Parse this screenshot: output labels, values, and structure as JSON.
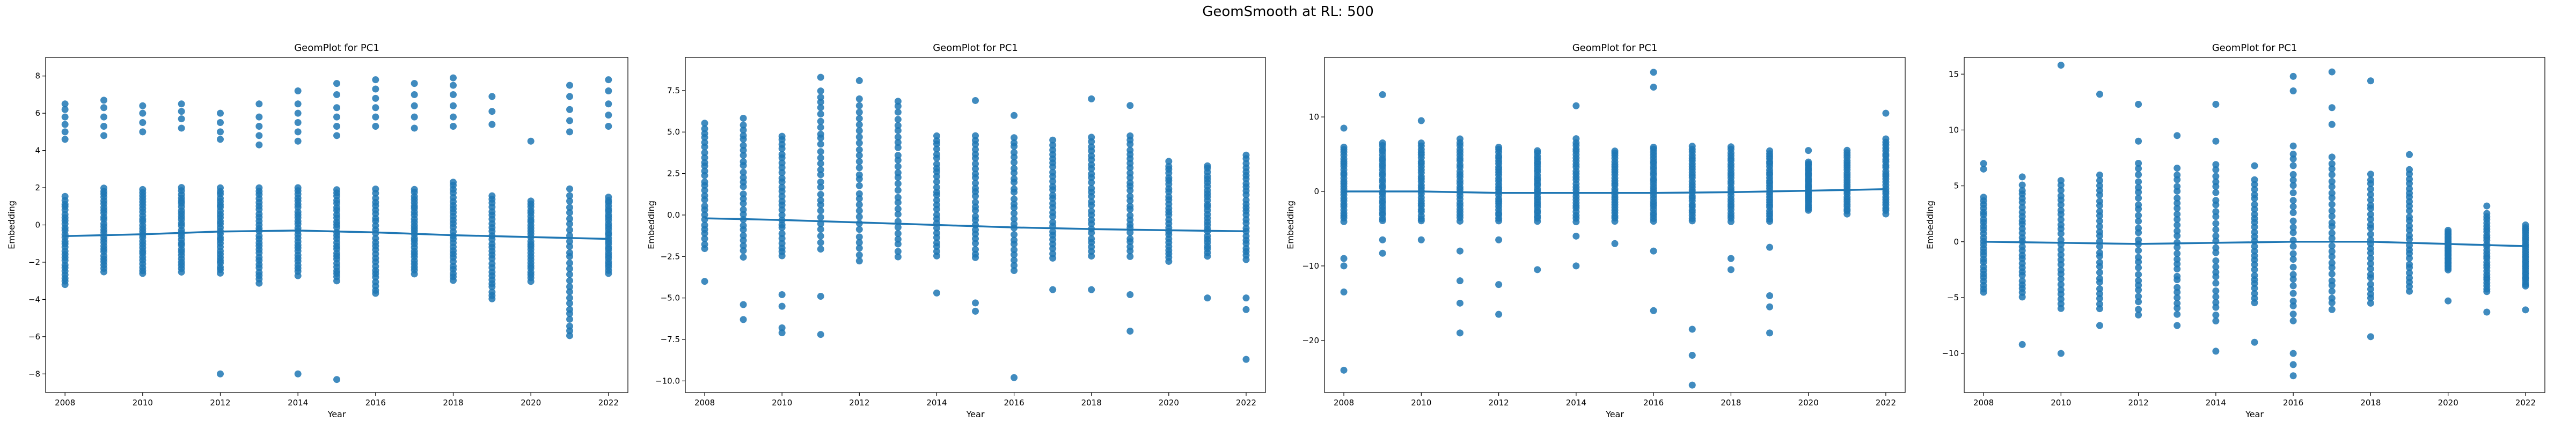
{
  "figure_title": "GeomSmooth at RL: 500",
  "chart_data": [
    {
      "type": "scatter",
      "title": "GeomPlot for PC1",
      "xlabel": "Year",
      "ylabel": "Embedding",
      "xlim": [
        2007.5,
        2022.5
      ],
      "ylim": [
        -9,
        9
      ],
      "x_ticks": [
        2008,
        2010,
        2012,
        2014,
        2016,
        2018,
        2020,
        2022
      ],
      "y_ticks": [
        -8,
        -6,
        -4,
        -2,
        0,
        2,
        4,
        6,
        8
      ],
      "color": "#1f77b4",
      "points": [
        {
          "year": 2008,
          "lo": -3.2,
          "hi": 1.5,
          "extra": [
            4.6,
            5.0,
            5.4,
            5.8,
            6.2,
            6.5
          ]
        },
        {
          "year": 2009,
          "lo": -2.5,
          "hi": 2.0,
          "extra": [
            4.8,
            5.3,
            5.8,
            6.3,
            6.7
          ]
        },
        {
          "year": 2010,
          "lo": -2.6,
          "hi": 1.9,
          "extra": [
            5.0,
            5.5,
            6.0,
            6.4
          ]
        },
        {
          "year": 2011,
          "lo": -2.5,
          "hi": 2.0,
          "extra": [
            5.2,
            5.7,
            6.1,
            6.5
          ]
        },
        {
          "year": 2012,
          "lo": -2.6,
          "hi": 2.0,
          "extra": [
            -8.0,
            4.6,
            5.0,
            5.5,
            6.0
          ]
        },
        {
          "year": 2013,
          "lo": -3.1,
          "hi": 2.0,
          "extra": [
            4.3,
            4.8,
            5.3,
            5.8,
            6.5
          ]
        },
        {
          "year": 2014,
          "lo": -2.7,
          "hi": 2.0,
          "extra": [
            -8.0,
            4.5,
            5.0,
            5.5,
            6.0,
            6.5,
            7.2
          ]
        },
        {
          "year": 2015,
          "lo": -3.0,
          "hi": 1.9,
          "extra": [
            -8.3,
            4.8,
            5.3,
            5.8,
            6.3,
            7.0,
            7.6
          ]
        },
        {
          "year": 2016,
          "lo": -3.7,
          "hi": 1.9,
          "extra": [
            5.3,
            5.8,
            6.3,
            6.8,
            7.3,
            7.8
          ]
        },
        {
          "year": 2017,
          "lo": -2.6,
          "hi": 1.9,
          "extra": [
            5.2,
            5.8,
            6.4,
            7.0,
            7.6
          ]
        },
        {
          "year": 2018,
          "lo": -3.0,
          "hi": 2.3,
          "extra": [
            5.3,
            5.8,
            6.4,
            7.0,
            7.5,
            7.9
          ]
        },
        {
          "year": 2019,
          "lo": -4.0,
          "hi": 1.6,
          "extra": [
            5.4,
            6.1,
            6.9
          ]
        },
        {
          "year": 2020,
          "lo": -3.0,
          "hi": 1.3,
          "extra": [
            4.5
          ]
        },
        {
          "year": 2021,
          "lo": -6.0,
          "hi": 1.9,
          "extra": [
            5.0,
            5.6,
            6.2,
            6.9,
            7.5
          ]
        },
        {
          "year": 2022,
          "lo": -2.6,
          "hi": 1.5,
          "extra": [
            5.3,
            5.9,
            6.5,
            7.2,
            7.8
          ]
        }
      ],
      "smooth": {
        "x": [
          2008,
          2010,
          2012,
          2014,
          2016,
          2018,
          2020,
          2022
        ],
        "y": [
          -0.6,
          -0.5,
          -0.35,
          -0.3,
          -0.4,
          -0.55,
          -0.65,
          -0.75
        ]
      }
    },
    {
      "type": "scatter",
      "title": "GeomPlot for PC1",
      "xlabel": "Year",
      "ylabel": "Embedding",
      "xlim": [
        2007.5,
        2022.5
      ],
      "ylim": [
        -10.7,
        9.5
      ],
      "x_ticks": [
        2008,
        2010,
        2012,
        2014,
        2016,
        2018,
        2020,
        2022
      ],
      "y_ticks": [
        -10.0,
        -7.5,
        -5.0,
        -2.5,
        0.0,
        2.5,
        5.0,
        7.5
      ],
      "color": "#1f77b4",
      "points": [
        {
          "year": 2008,
          "lo": -2.0,
          "hi": 5.5,
          "extra": [
            -4.0
          ]
        },
        {
          "year": 2009,
          "lo": -2.5,
          "hi": 5.8,
          "extra": [
            -5.4,
            -6.3
          ]
        },
        {
          "year": 2010,
          "lo": -2.5,
          "hi": 4.8,
          "extra": [
            -4.8,
            -5.5,
            -6.8,
            -7.1
          ]
        },
        {
          "year": 2011,
          "lo": -2.0,
          "hi": 7.5,
          "extra": [
            -4.9,
            -7.2,
            8.3
          ]
        },
        {
          "year": 2012,
          "lo": -2.8,
          "hi": 7.0,
          "extra": [
            8.1
          ]
        },
        {
          "year": 2013,
          "lo": -2.5,
          "hi": 6.9,
          "extra": []
        },
        {
          "year": 2014,
          "lo": -2.5,
          "hi": 4.8,
          "extra": [
            -4.7
          ]
        },
        {
          "year": 2015,
          "lo": -2.6,
          "hi": 4.8,
          "extra": [
            -5.3,
            -5.8,
            6.9
          ]
        },
        {
          "year": 2016,
          "lo": -3.3,
          "hi": 4.7,
          "extra": [
            -9.8,
            6.0
          ]
        },
        {
          "year": 2017,
          "lo": -2.6,
          "hi": 4.5,
          "extra": [
            -4.5
          ]
        },
        {
          "year": 2018,
          "lo": -2.5,
          "hi": 4.7,
          "extra": [
            -4.5,
            7.0
          ]
        },
        {
          "year": 2019,
          "lo": -2.5,
          "hi": 4.8,
          "extra": [
            -4.8,
            -7.0,
            6.6
          ]
        },
        {
          "year": 2020,
          "lo": -2.8,
          "hi": 3.2,
          "extra": []
        },
        {
          "year": 2021,
          "lo": -2.5,
          "hi": 3.0,
          "extra": [
            -5.0
          ]
        },
        {
          "year": 2022,
          "lo": -2.7,
          "hi": 3.6,
          "extra": [
            -5.0,
            -5.7,
            -8.7
          ]
        }
      ],
      "smooth": {
        "x": [
          2008,
          2010,
          2012,
          2014,
          2016,
          2018,
          2020,
          2022
        ],
        "y": [
          -0.2,
          -0.3,
          -0.45,
          -0.6,
          -0.75,
          -0.85,
          -0.92,
          -0.98
        ]
      }
    },
    {
      "type": "scatter",
      "title": "GeomPlot for PC1",
      "xlabel": "Year",
      "ylabel": "Embedding",
      "xlim": [
        2007.5,
        2022.5
      ],
      "ylim": [
        -27,
        18
      ],
      "x_ticks": [
        2008,
        2010,
        2012,
        2014,
        2016,
        2018,
        2020,
        2022
      ],
      "y_ticks": [
        -20,
        -10,
        0,
        10
      ],
      "color": "#1f77b4",
      "points": [
        {
          "year": 2008,
          "lo": -4.0,
          "hi": 6.0,
          "extra": [
            -9.0,
            -10.0,
            -13.5,
            -24.0,
            8.5
          ]
        },
        {
          "year": 2009,
          "lo": -4.0,
          "hi": 6.5,
          "extra": [
            -6.5,
            -8.3,
            13.0
          ]
        },
        {
          "year": 2010,
          "lo": -4.0,
          "hi": 6.5,
          "extra": [
            -6.5,
            9.5
          ]
        },
        {
          "year": 2011,
          "lo": -4.0,
          "hi": 7.0,
          "extra": [
            -8.0,
            -12.0,
            -15.0,
            -19.0
          ]
        },
        {
          "year": 2012,
          "lo": -4.0,
          "hi": 6.0,
          "extra": [
            -6.5,
            -12.5,
            -16.5
          ]
        },
        {
          "year": 2013,
          "lo": -4.0,
          "hi": 5.5,
          "extra": [
            -10.5
          ]
        },
        {
          "year": 2014,
          "lo": -4.0,
          "hi": 7.0,
          "extra": [
            -6.0,
            -10.0,
            11.5
          ]
        },
        {
          "year": 2015,
          "lo": -4.0,
          "hi": 5.5,
          "extra": [
            -7.0
          ]
        },
        {
          "year": 2016,
          "lo": -4.0,
          "hi": 6.0,
          "extra": [
            -8.0,
            -16.0,
            14.0,
            16.0
          ]
        },
        {
          "year": 2017,
          "lo": -4.0,
          "hi": 6.0,
          "extra": [
            -18.5,
            -22.0,
            -26.0
          ]
        },
        {
          "year": 2018,
          "lo": -4.0,
          "hi": 6.0,
          "extra": [
            -9.0,
            -10.5
          ]
        },
        {
          "year": 2019,
          "lo": -4.0,
          "hi": 5.5,
          "extra": [
            -7.5,
            -14.0,
            -15.5,
            -19.0
          ]
        },
        {
          "year": 2020,
          "lo": -2.5,
          "hi": 4.0,
          "extra": [
            5.5
          ]
        },
        {
          "year": 2021,
          "lo": -3.0,
          "hi": 5.5,
          "extra": []
        },
        {
          "year": 2022,
          "lo": -3.0,
          "hi": 7.0,
          "extra": [
            10.5
          ]
        }
      ],
      "smooth": {
        "x": [
          2008,
          2010,
          2012,
          2014,
          2016,
          2018,
          2020,
          2022
        ],
        "y": [
          0.0,
          0.0,
          -0.2,
          -0.2,
          -0.2,
          -0.1,
          0.1,
          0.3
        ]
      }
    },
    {
      "type": "scatter",
      "title": "GeomPlot for PC1",
      "xlabel": "Year",
      "ylabel": "Embedding",
      "xlim": [
        2007.5,
        2022.5
      ],
      "ylim": [
        -13.5,
        16.5
      ],
      "x_ticks": [
        2008,
        2010,
        2012,
        2014,
        2016,
        2018,
        2020,
        2022
      ],
      "y_ticks": [
        -10,
        -5,
        0,
        5,
        10,
        15
      ],
      "color": "#1f77b4",
      "points": [
        {
          "year": 2008,
          "lo": -4.5,
          "hi": 4.0,
          "extra": [
            6.5,
            7.0
          ]
        },
        {
          "year": 2009,
          "lo": -5.0,
          "hi": 5.0,
          "extra": [
            -9.2,
            5.8
          ]
        },
        {
          "year": 2010,
          "lo": -6.0,
          "hi": 5.5,
          "extra": [
            -10.0,
            15.8
          ]
        },
        {
          "year": 2011,
          "lo": -6.0,
          "hi": 6.0,
          "extra": [
            -7.5,
            13.2
          ]
        },
        {
          "year": 2012,
          "lo": -6.5,
          "hi": 7.0,
          "extra": [
            9.0,
            12.3
          ]
        },
        {
          "year": 2013,
          "lo": -6.5,
          "hi": 6.5,
          "extra": [
            -7.5,
            9.5
          ]
        },
        {
          "year": 2014,
          "lo": -7.0,
          "hi": 7.0,
          "extra": [
            -9.8,
            9.0,
            12.3
          ]
        },
        {
          "year": 2015,
          "lo": -5.5,
          "hi": 5.5,
          "extra": [
            -9.0,
            6.8
          ]
        },
        {
          "year": 2016,
          "lo": -7.0,
          "hi": 8.5,
          "extra": [
            -10.0,
            -11.0,
            -12.0,
            13.5,
            14.8
          ]
        },
        {
          "year": 2017,
          "lo": -6.0,
          "hi": 7.5,
          "extra": [
            10.5,
            12.0,
            15.2
          ]
        },
        {
          "year": 2018,
          "lo": -5.5,
          "hi": 6.0,
          "extra": [
            -8.5,
            14.4
          ]
        },
        {
          "year": 2019,
          "lo": -4.5,
          "hi": 6.5,
          "extra": [
            7.8
          ]
        },
        {
          "year": 2020,
          "lo": -2.5,
          "hi": 1.0,
          "extra": [
            -5.3
          ]
        },
        {
          "year": 2021,
          "lo": -4.5,
          "hi": 2.5,
          "extra": [
            -6.3,
            3.2
          ]
        },
        {
          "year": 2022,
          "lo": -4.0,
          "hi": 1.5,
          "extra": [
            -6.1
          ]
        }
      ],
      "smooth": {
        "x": [
          2008,
          2010,
          2012,
          2014,
          2016,
          2018,
          2020,
          2022
        ],
        "y": [
          0.0,
          -0.1,
          -0.2,
          -0.1,
          0.0,
          0.0,
          -0.2,
          -0.4
        ]
      }
    }
  ]
}
